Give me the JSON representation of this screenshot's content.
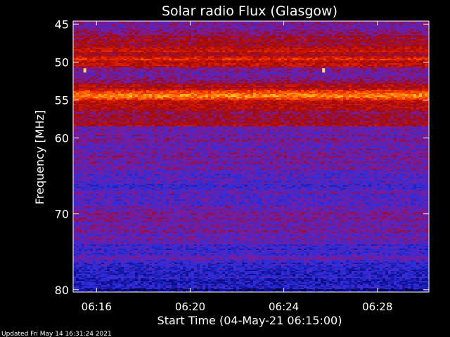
{
  "chart_data": {
    "type": "heatmap",
    "title": "Solar radio Flux (Glasgow)",
    "xlabel": "Start Time (04-May-21 06:15:00)",
    "ylabel": "Frequency [MHz]",
    "x_ticks": [
      "06:16",
      "06:20",
      "06:24",
      "06:28"
    ],
    "x_tick_minutes": [
      16,
      20,
      24,
      28
    ],
    "x_range_minutes": [
      15.0,
      30.2
    ],
    "y_ticks": [
      45,
      50,
      55,
      60,
      70,
      80
    ],
    "y_range": [
      44.6,
      80.3
    ],
    "colormap": [
      "#000000",
      "#0c0c8c",
      "#2e2edc",
      "#7a1ca0",
      "#a00a0a",
      "#d81a00",
      "#ff5a00",
      "#ffc828",
      "#ffffff"
    ],
    "background_level": 0.36,
    "bands": [
      {
        "freq": 45.2,
        "width": 0.35,
        "level": 0.2
      },
      {
        "freq": 46.0,
        "width": 0.9,
        "level": 0.4
      },
      {
        "freq": 47.2,
        "width": 1.2,
        "level": 0.48
      },
      {
        "freq": 48.6,
        "width": 1.0,
        "level": 0.56
      },
      {
        "freq": 49.6,
        "width": 0.7,
        "level": 0.62
      },
      {
        "freq": 50.2,
        "width": 1.1,
        "level": 0.58
      },
      {
        "freq": 51.5,
        "width": 1.2,
        "level": 0.55
      },
      {
        "freq": 52.5,
        "width": 0.7,
        "level": 0.32
      },
      {
        "freq": 53.3,
        "width": 0.8,
        "level": 0.52
      },
      {
        "freq": 54.4,
        "width": 0.9,
        "level": 0.8
      },
      {
        "freq": 55.8,
        "width": 1.2,
        "level": 0.55
      },
      {
        "freq": 57.0,
        "width": 1.0,
        "level": 0.48
      },
      {
        "freq": 58.2,
        "width": 1.0,
        "level": 0.5
      },
      {
        "freq": 59.5,
        "width": 0.35,
        "level": 0.76
      },
      {
        "freq": 60.4,
        "width": 0.8,
        "level": 0.3
      },
      {
        "freq": 61.3,
        "width": 0.9,
        "level": 0.42
      },
      {
        "freq": 62.3,
        "width": 0.7,
        "level": 0.26
      },
      {
        "freq": 63.1,
        "width": 0.8,
        "level": 0.44
      },
      {
        "freq": 64.1,
        "width": 0.35,
        "level": 0.58
      },
      {
        "freq": 65.0,
        "width": 1.0,
        "level": 0.3
      },
      {
        "freq": 66.3,
        "width": 1.0,
        "level": 0.27
      },
      {
        "freq": 67.6,
        "width": 1.2,
        "level": 0.36
      },
      {
        "freq": 68.8,
        "width": 1.0,
        "level": 0.3
      },
      {
        "freq": 70.0,
        "width": 1.2,
        "level": 0.24
      },
      {
        "freq": 71.3,
        "width": 0.9,
        "level": 0.4
      },
      {
        "freq": 72.4,
        "width": 0.45,
        "level": 1.0
      },
      {
        "freq": 73.6,
        "width": 1.0,
        "level": 0.34
      },
      {
        "freq": 74.8,
        "width": 1.1,
        "level": 0.24
      },
      {
        "freq": 76.0,
        "width": 1.0,
        "level": 0.34
      },
      {
        "freq": 77.0,
        "width": 0.8,
        "level": 0.2
      },
      {
        "freq": 78.0,
        "width": 0.9,
        "level": 0.22
      },
      {
        "freq": 79.0,
        "width": 0.8,
        "level": 0.18
      },
      {
        "freq": 80.0,
        "width": 0.5,
        "level": 0.12
      }
    ],
    "bursts": [
      {
        "time_minutes": 15.5,
        "freq": 51.1,
        "level": 0.92
      },
      {
        "time_minutes": 25.7,
        "freq": 51.1,
        "level": 0.92
      }
    ]
  },
  "footer": {
    "updated": "Updated Fri May 14 16:31:24 2021"
  }
}
